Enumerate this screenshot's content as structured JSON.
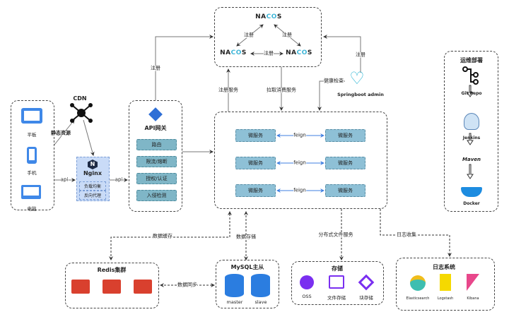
{
  "clients": {
    "items": [
      {
        "label": "平板",
        "icon": "tablet-icon"
      },
      {
        "label": "手机",
        "icon": "phone-icon"
      },
      {
        "label": "电脑",
        "icon": "monitor-icon"
      }
    ]
  },
  "cdn": {
    "label": "CDN",
    "static_label": "静态资源"
  },
  "nginx": {
    "title": "Nginx",
    "items": [
      "负载均衡",
      "反向代理"
    ],
    "api_in": "api",
    "api_out": "api"
  },
  "gateway": {
    "title": "API网关",
    "items": [
      "路由",
      "限流/熔断",
      "授权/认证",
      "入侵检测"
    ],
    "register": "注册"
  },
  "nacos": {
    "nodes": [
      "NACOS",
      "NACOS",
      "NACOS"
    ],
    "edges": [
      "注册",
      "注册",
      "注册"
    ],
    "register_service": "注册服务",
    "pull_service": "拉取消费服务"
  },
  "admin": {
    "label": "Springboot admin",
    "register": "注册",
    "health": "健康检查"
  },
  "services": {
    "rows": [
      {
        "left": "微服务",
        "link": "feign",
        "right": "微服务"
      },
      {
        "left": "微服务",
        "link": "feign",
        "right": "微服务"
      },
      {
        "left": "微服务",
        "link": "feign",
        "right": "微服务"
      }
    ]
  },
  "ops": {
    "title": "运维部署",
    "steps": [
      "Git Repo",
      "Jenkins",
      "Maven",
      "Docker"
    ]
  },
  "redis": {
    "title": "Redis集群",
    "cache_label": "数据缓存",
    "sync_label": "数据同步"
  },
  "mysql": {
    "title": "MySQL主从",
    "store_label": "数据存储",
    "nodes": [
      "master",
      "slave"
    ]
  },
  "storage": {
    "title": "存储",
    "link_label": "分布式文件服务",
    "items": [
      "OSS",
      "文件存储",
      "块存储"
    ]
  },
  "logs": {
    "title": "日志系统",
    "link_label": "日志收集",
    "items": [
      "Elasticsearch",
      "Logstash",
      "Kibana"
    ]
  },
  "colors": {
    "accent": "#3f7fe0",
    "service": "#8ec0d6",
    "gateway_item": "#7fb6c7",
    "nginx_bg": "#c9dbf7",
    "redis": "#d9402e",
    "mysql": "#2b7de0",
    "storage": "#7a2ff0",
    "nacos": "#3fb6d8"
  }
}
